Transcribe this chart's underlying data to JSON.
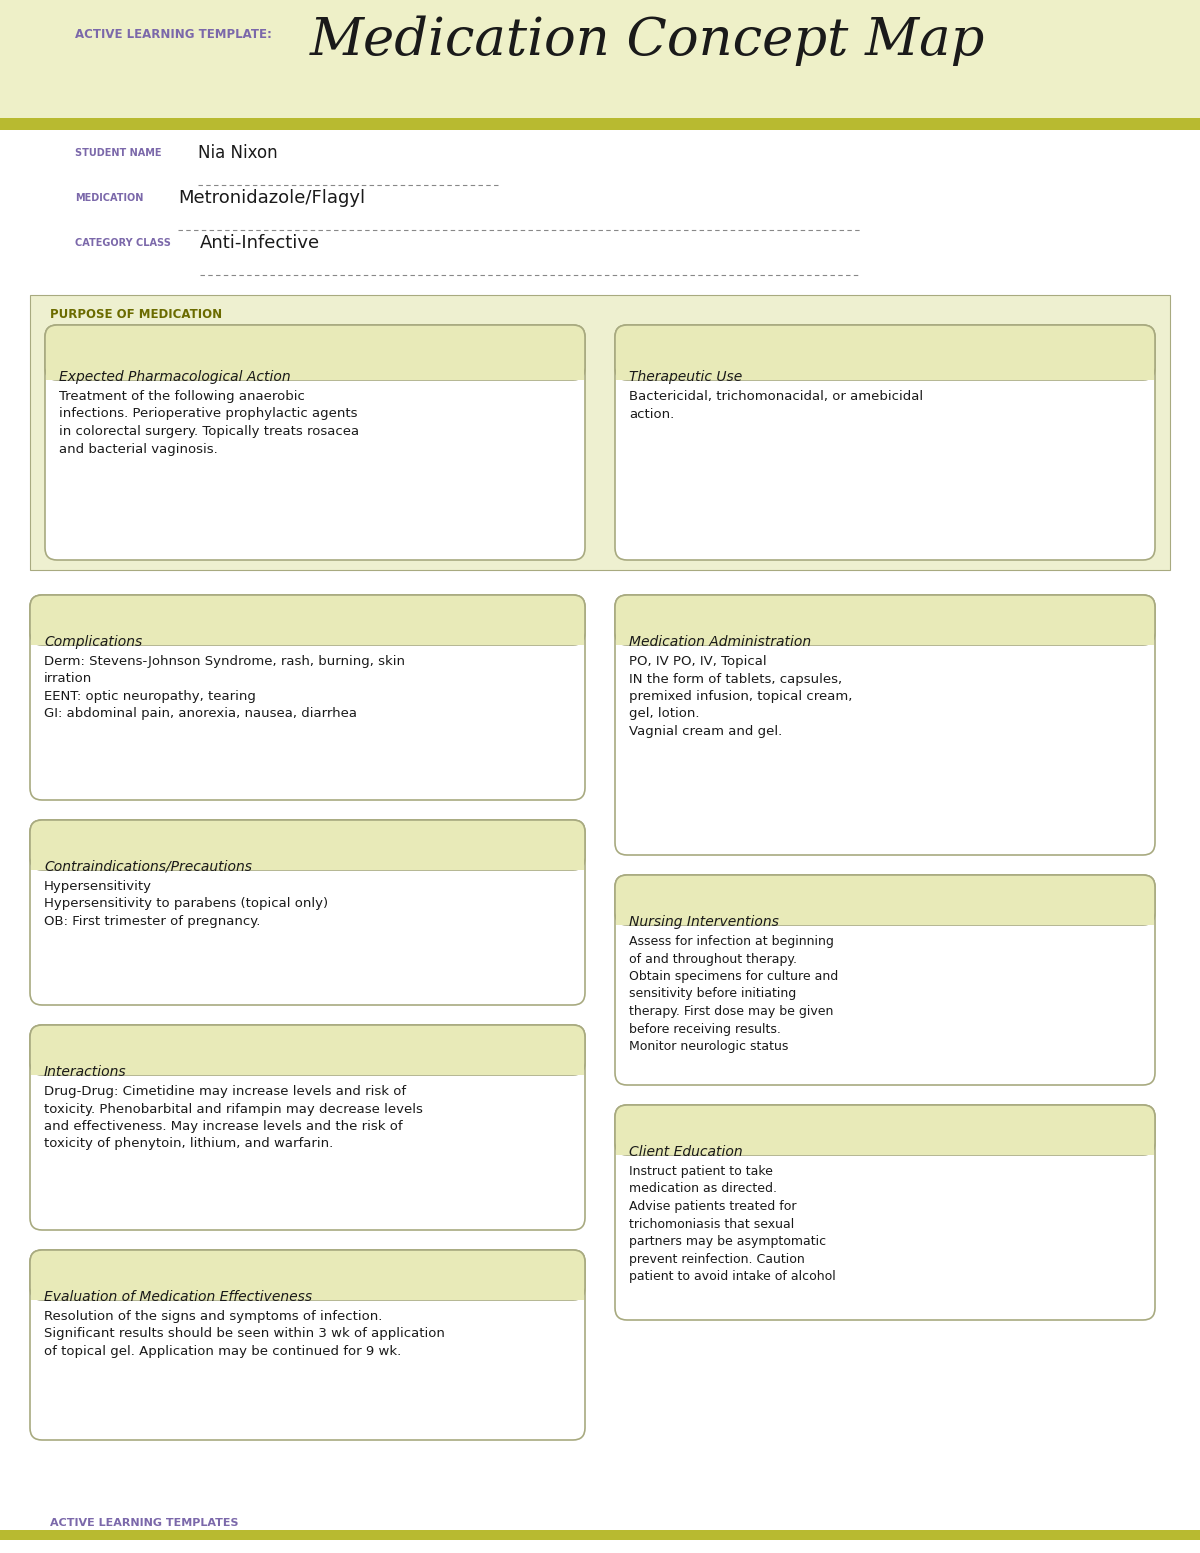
{
  "bg_header": "#eef0c8",
  "bg_white": "#ffffff",
  "bg_section": "#eef0d0",
  "bg_box": "#ffffff",
  "border_color": "#a8aa80",
  "stripe_color": "#b8ba30",
  "title_text": "Medication Concept Map",
  "template_label": "ACTIVE LEARNING TEMPLATE:",
  "student_name_label": "STUDENT NAME",
  "student_name": "Nia Nixon",
  "medication_label": "MEDICATION",
  "medication": "Metronidazole/Flagyl",
  "category_label": "CATEGORY CLASS",
  "category": "Anti-Infective",
  "purpose_label": "PURPOSE OF MEDICATION",
  "box1_title": "Expected Pharmacological Action",
  "box1_content": "Treatment of the following anaerobic\ninfections. Perioperative prophylactic agents\nin colorectal surgery. Topically treats rosacea\nand bacterial vaginosis.",
  "box2_title": "Therapeutic Use",
  "box2_content": "Bactericidal, trichomonacidal, or amebicidal\naction.",
  "box3_title": "Complications",
  "box3_content": "Derm: Stevens-Johnson Syndrome, rash, burning, skin\nirration\nEENT: optic neuropathy, tearing\nGI: abdominal pain, anorexia, nausea, diarrhea",
  "box4_title": "Medication Administration",
  "box4_content": "PO, IV PO, IV, Topical\nIN the form of tablets, capsules,\npremixed infusion, topical cream,\ngel, lotion.\nVagnial cream and gel.",
  "box5_title": "Contraindications/Precautions",
  "box5_content": "Hypersensitivity\nHypersensitivity to parabens (topical only)\nOB: First trimester of pregnancy.",
  "box6_title": "Nursing Interventions",
  "box6_content": "Assess for infection at beginning\nof and throughout therapy.\nObtain specimens for culture and\nsensitivity before initiating\ntherapy. First dose may be given\nbefore receiving results.\nMonitor neurologic status",
  "box7_title": "Interactions",
  "box7_content": "Drug-Drug: Cimetidine may increase levels and risk of\ntoxicity. Phenobarbital and rifampin may decrease levels\nand effectiveness. May increase levels and the risk of\ntoxicity of phenytoin, lithium, and warfarin.",
  "box8_title": "Client Education",
  "box8_content": "Instruct patient to take\nmedication as directed.\nAdvise patients treated for\ntrichomoniasis that sexual\npartners may be asymptomatic\nprevent reinfection. Caution\npatient to avoid intake of alcohol",
  "box9_title": "Evaluation of Medication Effectiveness",
  "box9_content": "Resolution of the signs and symptoms of infection.\nSignificant results should be seen within 3 wk of application\nof topical gel. Application may be continued for 9 wk.",
  "footer": "ACTIVE LEARNING TEMPLATES",
  "label_color": "#7b68aa",
  "olive_color": "#6b6b00",
  "text_color": "#1a1a1a",
  "header_box_bg": "#e8eab8"
}
